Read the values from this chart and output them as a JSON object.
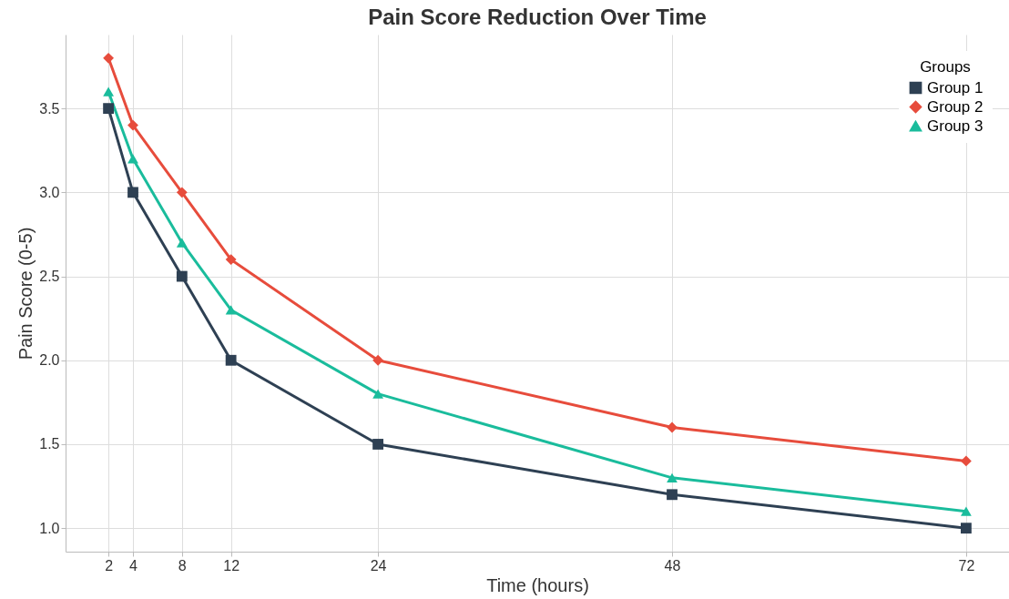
{
  "chart_data": {
    "type": "line",
    "title": "Pain Score Reduction Over Time",
    "xlabel": "Time (hours)",
    "ylabel": "Pain Score (0-5)",
    "legend_title": "Groups",
    "x": [
      2,
      4,
      8,
      12,
      24,
      48,
      72
    ],
    "series": [
      {
        "name": "Group 1",
        "color": "#2e4053",
        "marker": "square",
        "values": [
          3.5,
          3.0,
          2.5,
          2.0,
          1.5,
          1.2,
          1.0
        ]
      },
      {
        "name": "Group 2",
        "color": "#e74c3c",
        "marker": "diamond",
        "values": [
          3.8,
          3.4,
          3.0,
          2.6,
          2.0,
          1.6,
          1.4
        ]
      },
      {
        "name": "Group 3",
        "color": "#1abc9c",
        "marker": "triangle",
        "values": [
          3.6,
          3.2,
          2.7,
          2.3,
          1.8,
          1.3,
          1.1
        ]
      }
    ],
    "xlim": [
      -1.5,
      75.5
    ],
    "xticks": [
      2,
      4,
      8,
      12,
      24,
      48,
      72
    ],
    "ylim": [
      0.86,
      3.94
    ],
    "yticks": [
      {
        "value": 1,
        "label": "1.0"
      },
      1.5,
      {
        "value": 2,
        "label": "2.0"
      },
      2.5,
      {
        "value": 3,
        "label": "3.0"
      },
      3.5
    ],
    "grid": true,
    "legend": "top right",
    "line_style": "solid"
  }
}
